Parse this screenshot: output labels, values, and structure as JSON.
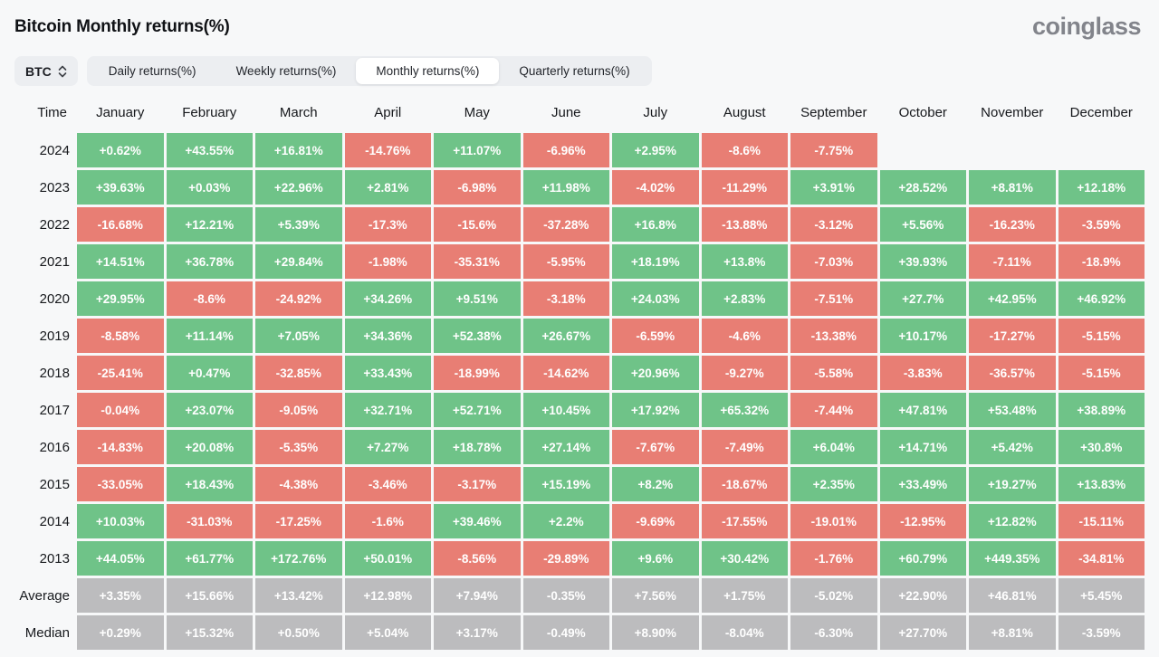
{
  "header": {
    "title": "Bitcoin Monthly returns(%)",
    "brand": "coinglass"
  },
  "controls": {
    "coin_selector": {
      "value": "BTC",
      "icon": "updown-chevron-icon"
    },
    "tabs": [
      {
        "label": "Daily returns(%)",
        "selected": false
      },
      {
        "label": "Weekly returns(%)",
        "selected": false
      },
      {
        "label": "Monthly returns(%)",
        "selected": true
      },
      {
        "label": "Quarterly returns(%)",
        "selected": false
      }
    ]
  },
  "theme": {
    "positive": "#6fc388",
    "negative": "#e87e74",
    "summary": "#bcbcbe",
    "cell_text": "#ffffff",
    "page_background": "#f7f8f9"
  },
  "chart_data": {
    "type": "heatmap",
    "title": "Bitcoin Monthly returns(%)",
    "columns": [
      "Time",
      "January",
      "February",
      "March",
      "April",
      "May",
      "June",
      "July",
      "August",
      "September",
      "October",
      "November",
      "December"
    ],
    "rows": [
      {
        "label": "2024",
        "kind": "year",
        "values": [
          "+0.62%",
          "+43.55%",
          "+16.81%",
          "-14.76%",
          "+11.07%",
          "-6.96%",
          "+2.95%",
          "-8.6%",
          "-7.75%",
          "",
          "",
          ""
        ]
      },
      {
        "label": "2023",
        "kind": "year",
        "values": [
          "+39.63%",
          "+0.03%",
          "+22.96%",
          "+2.81%",
          "-6.98%",
          "+11.98%",
          "-4.02%",
          "-11.29%",
          "+3.91%",
          "+28.52%",
          "+8.81%",
          "+12.18%"
        ]
      },
      {
        "label": "2022",
        "kind": "year",
        "values": [
          "-16.68%",
          "+12.21%",
          "+5.39%",
          "-17.3%",
          "-15.6%",
          "-37.28%",
          "+16.8%",
          "-13.88%",
          "-3.12%",
          "+5.56%",
          "-16.23%",
          "-3.59%"
        ]
      },
      {
        "label": "2021",
        "kind": "year",
        "values": [
          "+14.51%",
          "+36.78%",
          "+29.84%",
          "-1.98%",
          "-35.31%",
          "-5.95%",
          "+18.19%",
          "+13.8%",
          "-7.03%",
          "+39.93%",
          "-7.11%",
          "-18.9%"
        ]
      },
      {
        "label": "2020",
        "kind": "year",
        "values": [
          "+29.95%",
          "-8.6%",
          "-24.92%",
          "+34.26%",
          "+9.51%",
          "-3.18%",
          "+24.03%",
          "+2.83%",
          "-7.51%",
          "+27.7%",
          "+42.95%",
          "+46.92%"
        ]
      },
      {
        "label": "2019",
        "kind": "year",
        "values": [
          "-8.58%",
          "+11.14%",
          "+7.05%",
          "+34.36%",
          "+52.38%",
          "+26.67%",
          "-6.59%",
          "-4.6%",
          "-13.38%",
          "+10.17%",
          "-17.27%",
          "-5.15%"
        ]
      },
      {
        "label": "2018",
        "kind": "year",
        "values": [
          "-25.41%",
          "+0.47%",
          "-32.85%",
          "+33.43%",
          "-18.99%",
          "-14.62%",
          "+20.96%",
          "-9.27%",
          "-5.58%",
          "-3.83%",
          "-36.57%",
          "-5.15%"
        ]
      },
      {
        "label": "2017",
        "kind": "year",
        "values": [
          "-0.04%",
          "+23.07%",
          "-9.05%",
          "+32.71%",
          "+52.71%",
          "+10.45%",
          "+17.92%",
          "+65.32%",
          "-7.44%",
          "+47.81%",
          "+53.48%",
          "+38.89%"
        ]
      },
      {
        "label": "2016",
        "kind": "year",
        "values": [
          "-14.83%",
          "+20.08%",
          "-5.35%",
          "+7.27%",
          "+18.78%",
          "+27.14%",
          "-7.67%",
          "-7.49%",
          "+6.04%",
          "+14.71%",
          "+5.42%",
          "+30.8%"
        ]
      },
      {
        "label": "2015",
        "kind": "year",
        "values": [
          "-33.05%",
          "+18.43%",
          "-4.38%",
          "-3.46%",
          "-3.17%",
          "+15.19%",
          "+8.2%",
          "-18.67%",
          "+2.35%",
          "+33.49%",
          "+19.27%",
          "+13.83%"
        ]
      },
      {
        "label": "2014",
        "kind": "year",
        "values": [
          "+10.03%",
          "-31.03%",
          "-17.25%",
          "-1.6%",
          "+39.46%",
          "+2.2%",
          "-9.69%",
          "-17.55%",
          "-19.01%",
          "-12.95%",
          "+12.82%",
          "-15.11%"
        ]
      },
      {
        "label": "2013",
        "kind": "year",
        "values": [
          "+44.05%",
          "+61.77%",
          "+172.76%",
          "+50.01%",
          "-8.56%",
          "-29.89%",
          "+9.6%",
          "+30.42%",
          "-1.76%",
          "+60.79%",
          "+449.35%",
          "-34.81%"
        ]
      },
      {
        "label": "Average",
        "kind": "summary",
        "values": [
          "+3.35%",
          "+15.66%",
          "+13.42%",
          "+12.98%",
          "+7.94%",
          "-0.35%",
          "+7.56%",
          "+1.75%",
          "-5.02%",
          "+22.90%",
          "+46.81%",
          "+5.45%"
        ]
      },
      {
        "label": "Median",
        "kind": "summary",
        "values": [
          "+0.29%",
          "+15.32%",
          "+0.50%",
          "+5.04%",
          "+3.17%",
          "-0.49%",
          "+8.90%",
          "-8.04%",
          "-6.30%",
          "+27.70%",
          "+8.81%",
          "-3.59%"
        ]
      }
    ]
  }
}
